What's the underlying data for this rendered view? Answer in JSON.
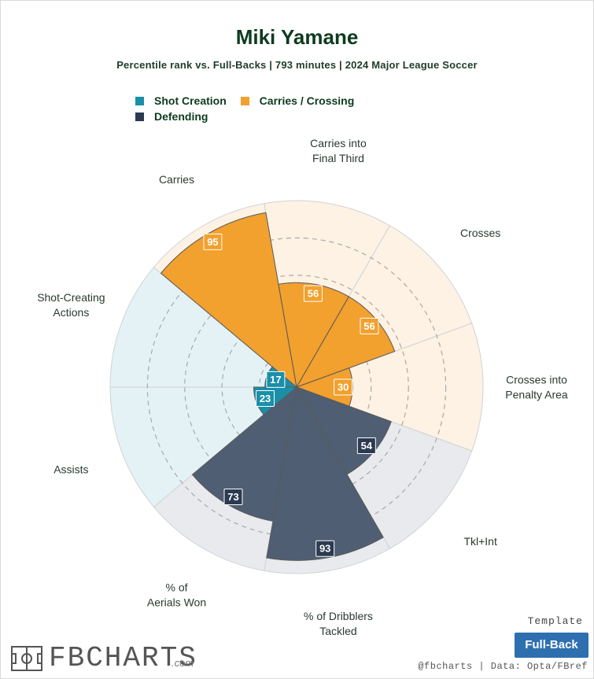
{
  "header": {
    "title": "Miki Yamane",
    "subtitle": "Percentile rank vs. Full-Backs | 793 minutes | 2024 Major League Soccer"
  },
  "legend": [
    {
      "label": "Shot Creation",
      "color": "#1a8fa8"
    },
    {
      "label": "Carries / Crossing",
      "color": "#f2a02e"
    },
    {
      "label": "Defending",
      "color": "#2c3a52"
    }
  ],
  "chart_data": {
    "type": "polar-bar",
    "scale": [
      0,
      100
    ],
    "grid": "dashed rings",
    "categories": [
      {
        "label": "Shot-Creating Actions",
        "value": 17,
        "group": "Shot Creation"
      },
      {
        "label": "Carries",
        "value": 95,
        "group": "Carries / Crossing"
      },
      {
        "label": "Carries into Final Third",
        "value": 56,
        "group": "Carries / Crossing"
      },
      {
        "label": "Crosses",
        "value": 56,
        "group": "Carries / Crossing"
      },
      {
        "label": "Crosses into Penalty Area",
        "value": 30,
        "group": "Carries / Crossing"
      },
      {
        "label": "Tkl+Int",
        "value": 54,
        "group": "Defending"
      },
      {
        "label": "% of Dribblers Tackled",
        "value": 93,
        "group": "Defending"
      },
      {
        "label": "% of Aerials Won",
        "value": 73,
        "group": "Defending"
      },
      {
        "label": "Assists",
        "value": 23,
        "group": "Shot Creation"
      }
    ],
    "group_colors": {
      "Shot Creation": {
        "bar": "#1a8fa8",
        "bg": "#e4f2f5"
      },
      "Carries / Crossing": {
        "bar": "#f2a02e",
        "bg": "#fdf2e4"
      },
      "Defending": {
        "bar": "#4f5e72",
        "bg": "#e9eaed",
        "box": "#2c3a52"
      }
    }
  },
  "footer": {
    "logo_text": "FBCHARTS",
    "logo_suffix": ".com",
    "template_label": "Template",
    "template_value": "Full-Back",
    "credit": "@fbcharts | Data: Opta/FBref"
  }
}
